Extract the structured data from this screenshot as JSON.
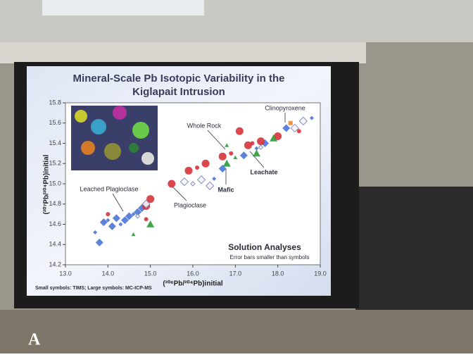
{
  "chart_data": {
    "type": "scatter",
    "title": [
      "Mineral-Scale Pb Isotopic Variability in the",
      "Kiglapait Intrusion"
    ],
    "x_label": "(²⁰⁶Pb/²⁰⁴Pb)initial",
    "y_label": "(²⁰⁷Pb/²⁰⁴Pb)initial",
    "xlim": [
      13.0,
      19.0
    ],
    "ylim": [
      14.2,
      15.8
    ],
    "xticks": [
      {
        "value": 13,
        "label": "13.0"
      },
      {
        "value": 14,
        "label": "14.0"
      },
      {
        "value": 15,
        "label": "15.0"
      },
      {
        "value": 16,
        "label": "16.0"
      },
      {
        "value": 17,
        "label": "17.0"
      },
      {
        "value": 18,
        "label": "18.0"
      },
      {
        "value": 19,
        "label": "19.0"
      }
    ],
    "yticks": [
      14.2,
      14.4,
      14.6,
      14.8,
      {
        "value": 15,
        "label": "15.0"
      },
      15.2,
      15.4,
      15.6,
      15.8
    ],
    "series": [
      {
        "color": "#4a74d6",
        "marker": "diamond",
        "x": [
          13.7,
          13.8,
          13.9,
          14.0,
          14.1,
          14.2,
          14.3,
          14.4,
          14.5,
          14.6,
          14.7,
          14.8,
          16.5,
          16.7,
          17.2,
          17.5,
          17.7,
          18.2,
          18.8
        ],
        "values": [
          14.52,
          14.42,
          14.62,
          14.64,
          14.58,
          14.66,
          14.6,
          14.64,
          14.68,
          14.7,
          14.72,
          14.76,
          15.05,
          15.15,
          15.28,
          15.35,
          15.4,
          15.55,
          15.65
        ]
      },
      {
        "color": "#d8323a",
        "marker": "circle",
        "x": [
          14.0,
          14.9,
          15.0,
          14.9,
          15.5,
          15.9,
          16.1,
          16.3,
          16.7,
          16.9,
          17.1,
          17.3,
          17.4,
          17.6,
          18.0,
          18.5
        ],
        "values": [
          14.7,
          14.78,
          14.85,
          14.65,
          15.0,
          15.13,
          15.16,
          15.2,
          15.27,
          15.3,
          15.52,
          15.38,
          15.4,
          15.42,
          15.47,
          15.52
        ]
      },
      {
        "color": "#f4f4fa",
        "marker": "diamond",
        "x": [
          14.7,
          14.9,
          15.8,
          16.0,
          16.2,
          16.4,
          17.6,
          18.4,
          18.6
        ],
        "values": [
          14.68,
          14.8,
          15.02,
          15.0,
          15.04,
          14.98,
          15.36,
          15.55,
          15.62
        ]
      },
      {
        "color": "#2e9a3a",
        "marker": "triangle",
        "x": [
          14.6,
          15.0,
          16.8,
          17.0,
          17.5,
          17.9,
          16.8
        ],
        "values": [
          14.5,
          14.6,
          15.2,
          15.26,
          15.3,
          15.45,
          15.38
        ]
      },
      {
        "color": "#e88a30",
        "marker": "square",
        "x": [
          18.3
        ],
        "values": [
          15.6
        ]
      }
    ],
    "annotations": [
      "Clinopyroxene",
      "Whole Rock",
      "Leached Plagioclase",
      "Plagioclase",
      "Mafic",
      "Leachate",
      "Solution Analyses",
      "Error bars smaller than symbols",
      "Small symbols: TIMS; Large symbols: MC-ICP-MS"
    ],
    "figure_label": "A"
  }
}
